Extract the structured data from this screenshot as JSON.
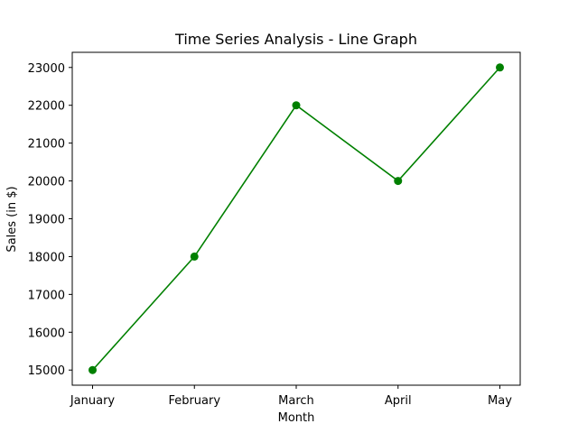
{
  "chart_data": {
    "type": "line",
    "title": "Time Series Analysis - Line Graph",
    "xlabel": "Month",
    "ylabel": "Sales (in $)",
    "categories": [
      "January",
      "February",
      "March",
      "April",
      "May"
    ],
    "series": [
      {
        "values": [
          15000,
          18000,
          22000,
          20000,
          23000
        ],
        "color": "#008000",
        "marker": "circle"
      }
    ],
    "yticks": [
      15000,
      16000,
      17000,
      18000,
      19000,
      20000,
      21000,
      22000,
      23000
    ],
    "ylim": [
      14600,
      23400
    ],
    "grid": false
  }
}
